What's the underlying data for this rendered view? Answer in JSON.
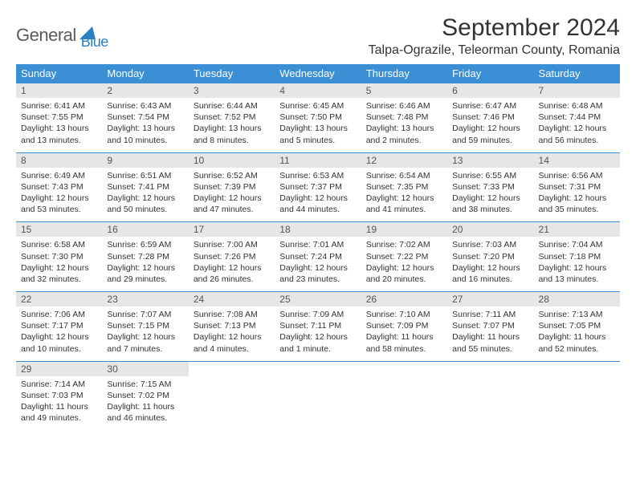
{
  "logo": {
    "general": "General",
    "blue": "Blue"
  },
  "title": "September 2024",
  "location": "Talpa-Ograzile, Teleorman County, Romania",
  "colors": {
    "header_bg": "#3b8fd4",
    "header_text": "#ffffff",
    "daynum_bg": "#e6e6e6",
    "row_border": "#3b8fd4",
    "logo_gray": "#5a5a5a",
    "logo_blue": "#2b7fc3"
  },
  "weekdays": [
    "Sunday",
    "Monday",
    "Tuesday",
    "Wednesday",
    "Thursday",
    "Friday",
    "Saturday"
  ],
  "days": [
    {
      "n": 1,
      "sunrise": "6:41 AM",
      "sunset": "7:55 PM",
      "daylight": "13 hours and 13 minutes."
    },
    {
      "n": 2,
      "sunrise": "6:43 AM",
      "sunset": "7:54 PM",
      "daylight": "13 hours and 10 minutes."
    },
    {
      "n": 3,
      "sunrise": "6:44 AM",
      "sunset": "7:52 PM",
      "daylight": "13 hours and 8 minutes."
    },
    {
      "n": 4,
      "sunrise": "6:45 AM",
      "sunset": "7:50 PM",
      "daylight": "13 hours and 5 minutes."
    },
    {
      "n": 5,
      "sunrise": "6:46 AM",
      "sunset": "7:48 PM",
      "daylight": "13 hours and 2 minutes."
    },
    {
      "n": 6,
      "sunrise": "6:47 AM",
      "sunset": "7:46 PM",
      "daylight": "12 hours and 59 minutes."
    },
    {
      "n": 7,
      "sunrise": "6:48 AM",
      "sunset": "7:44 PM",
      "daylight": "12 hours and 56 minutes."
    },
    {
      "n": 8,
      "sunrise": "6:49 AM",
      "sunset": "7:43 PM",
      "daylight": "12 hours and 53 minutes."
    },
    {
      "n": 9,
      "sunrise": "6:51 AM",
      "sunset": "7:41 PM",
      "daylight": "12 hours and 50 minutes."
    },
    {
      "n": 10,
      "sunrise": "6:52 AM",
      "sunset": "7:39 PM",
      "daylight": "12 hours and 47 minutes."
    },
    {
      "n": 11,
      "sunrise": "6:53 AM",
      "sunset": "7:37 PM",
      "daylight": "12 hours and 44 minutes."
    },
    {
      "n": 12,
      "sunrise": "6:54 AM",
      "sunset": "7:35 PM",
      "daylight": "12 hours and 41 minutes."
    },
    {
      "n": 13,
      "sunrise": "6:55 AM",
      "sunset": "7:33 PM",
      "daylight": "12 hours and 38 minutes."
    },
    {
      "n": 14,
      "sunrise": "6:56 AM",
      "sunset": "7:31 PM",
      "daylight": "12 hours and 35 minutes."
    },
    {
      "n": 15,
      "sunrise": "6:58 AM",
      "sunset": "7:30 PM",
      "daylight": "12 hours and 32 minutes."
    },
    {
      "n": 16,
      "sunrise": "6:59 AM",
      "sunset": "7:28 PM",
      "daylight": "12 hours and 29 minutes."
    },
    {
      "n": 17,
      "sunrise": "7:00 AM",
      "sunset": "7:26 PM",
      "daylight": "12 hours and 26 minutes."
    },
    {
      "n": 18,
      "sunrise": "7:01 AM",
      "sunset": "7:24 PM",
      "daylight": "12 hours and 23 minutes."
    },
    {
      "n": 19,
      "sunrise": "7:02 AM",
      "sunset": "7:22 PM",
      "daylight": "12 hours and 20 minutes."
    },
    {
      "n": 20,
      "sunrise": "7:03 AM",
      "sunset": "7:20 PM",
      "daylight": "12 hours and 16 minutes."
    },
    {
      "n": 21,
      "sunrise": "7:04 AM",
      "sunset": "7:18 PM",
      "daylight": "12 hours and 13 minutes."
    },
    {
      "n": 22,
      "sunrise": "7:06 AM",
      "sunset": "7:17 PM",
      "daylight": "12 hours and 10 minutes."
    },
    {
      "n": 23,
      "sunrise": "7:07 AM",
      "sunset": "7:15 PM",
      "daylight": "12 hours and 7 minutes."
    },
    {
      "n": 24,
      "sunrise": "7:08 AM",
      "sunset": "7:13 PM",
      "daylight": "12 hours and 4 minutes."
    },
    {
      "n": 25,
      "sunrise": "7:09 AM",
      "sunset": "7:11 PM",
      "daylight": "12 hours and 1 minute."
    },
    {
      "n": 26,
      "sunrise": "7:10 AM",
      "sunset": "7:09 PM",
      "daylight": "11 hours and 58 minutes."
    },
    {
      "n": 27,
      "sunrise": "7:11 AM",
      "sunset": "7:07 PM",
      "daylight": "11 hours and 55 minutes."
    },
    {
      "n": 28,
      "sunrise": "7:13 AM",
      "sunset": "7:05 PM",
      "daylight": "11 hours and 52 minutes."
    },
    {
      "n": 29,
      "sunrise": "7:14 AM",
      "sunset": "7:03 PM",
      "daylight": "11 hours and 49 minutes."
    },
    {
      "n": 30,
      "sunrise": "7:15 AM",
      "sunset": "7:02 PM",
      "daylight": "11 hours and 46 minutes."
    }
  ],
  "labels": {
    "sunrise": "Sunrise:",
    "sunset": "Sunset:",
    "daylight": "Daylight:"
  }
}
